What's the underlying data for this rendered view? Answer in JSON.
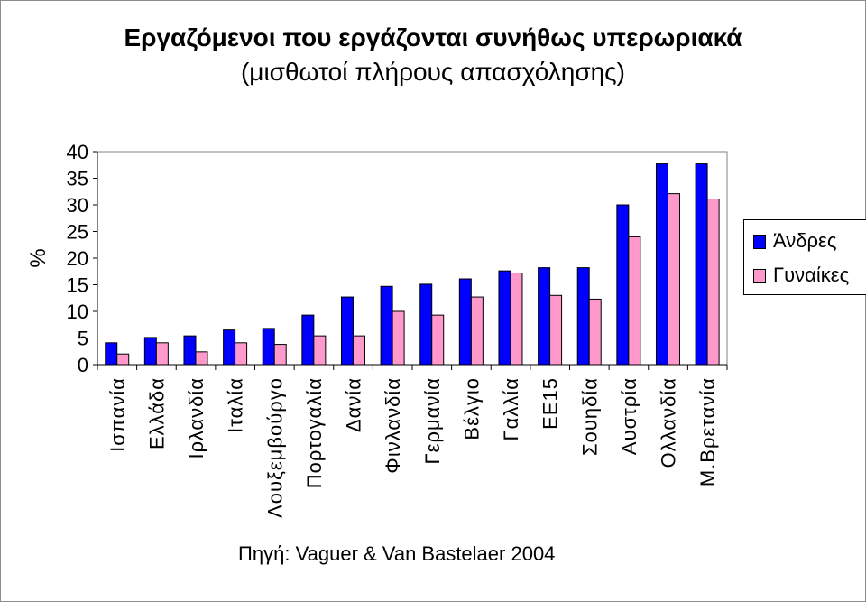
{
  "chart_data": {
    "type": "bar",
    "title": "Εργαζόμενοι που εργάζονται συνήθως υπερωριακά",
    "subtitle": "(μισθωτοί πλήρους απασχόλησης)",
    "ylabel": "%",
    "ylim": [
      0,
      40
    ],
    "yticks": [
      0,
      5,
      10,
      15,
      20,
      25,
      30,
      35,
      40
    ],
    "categories": [
      "Ισπανία",
      "Ελλάδα",
      "Ιρλανδία",
      "Ιταλία",
      "Λουξεμβούργο",
      "Πορτογαλία",
      "Δανία",
      "Φινλανδία",
      "Γερμανία",
      "Βέλγιο",
      "Γαλλία",
      "ΕΕ15",
      "Σουηδία",
      "Αυστρία",
      "Ολλανδία",
      "Μ.Βρετανία"
    ],
    "series": [
      {
        "name": "Άνδρες",
        "color": "#0000ff",
        "values": [
          4.1,
          5.1,
          5.4,
          6.5,
          6.8,
          9.3,
          12.7,
          14.7,
          15.1,
          16.1,
          17.6,
          18.2,
          18.2,
          30.0,
          37.7,
          37.7
        ]
      },
      {
        "name": "Γυναίκες",
        "color": "#ff99cc",
        "values": [
          2.0,
          4.1,
          2.4,
          4.1,
          3.8,
          5.4,
          5.4,
          10.0,
          9.3,
          12.7,
          17.2,
          13.0,
          12.3,
          24.0,
          32.1,
          31.1
        ]
      }
    ],
    "grid": false,
    "legend_position": "right"
  },
  "source": "Πηγή: Vaguer & Van Bastelaer 2004"
}
